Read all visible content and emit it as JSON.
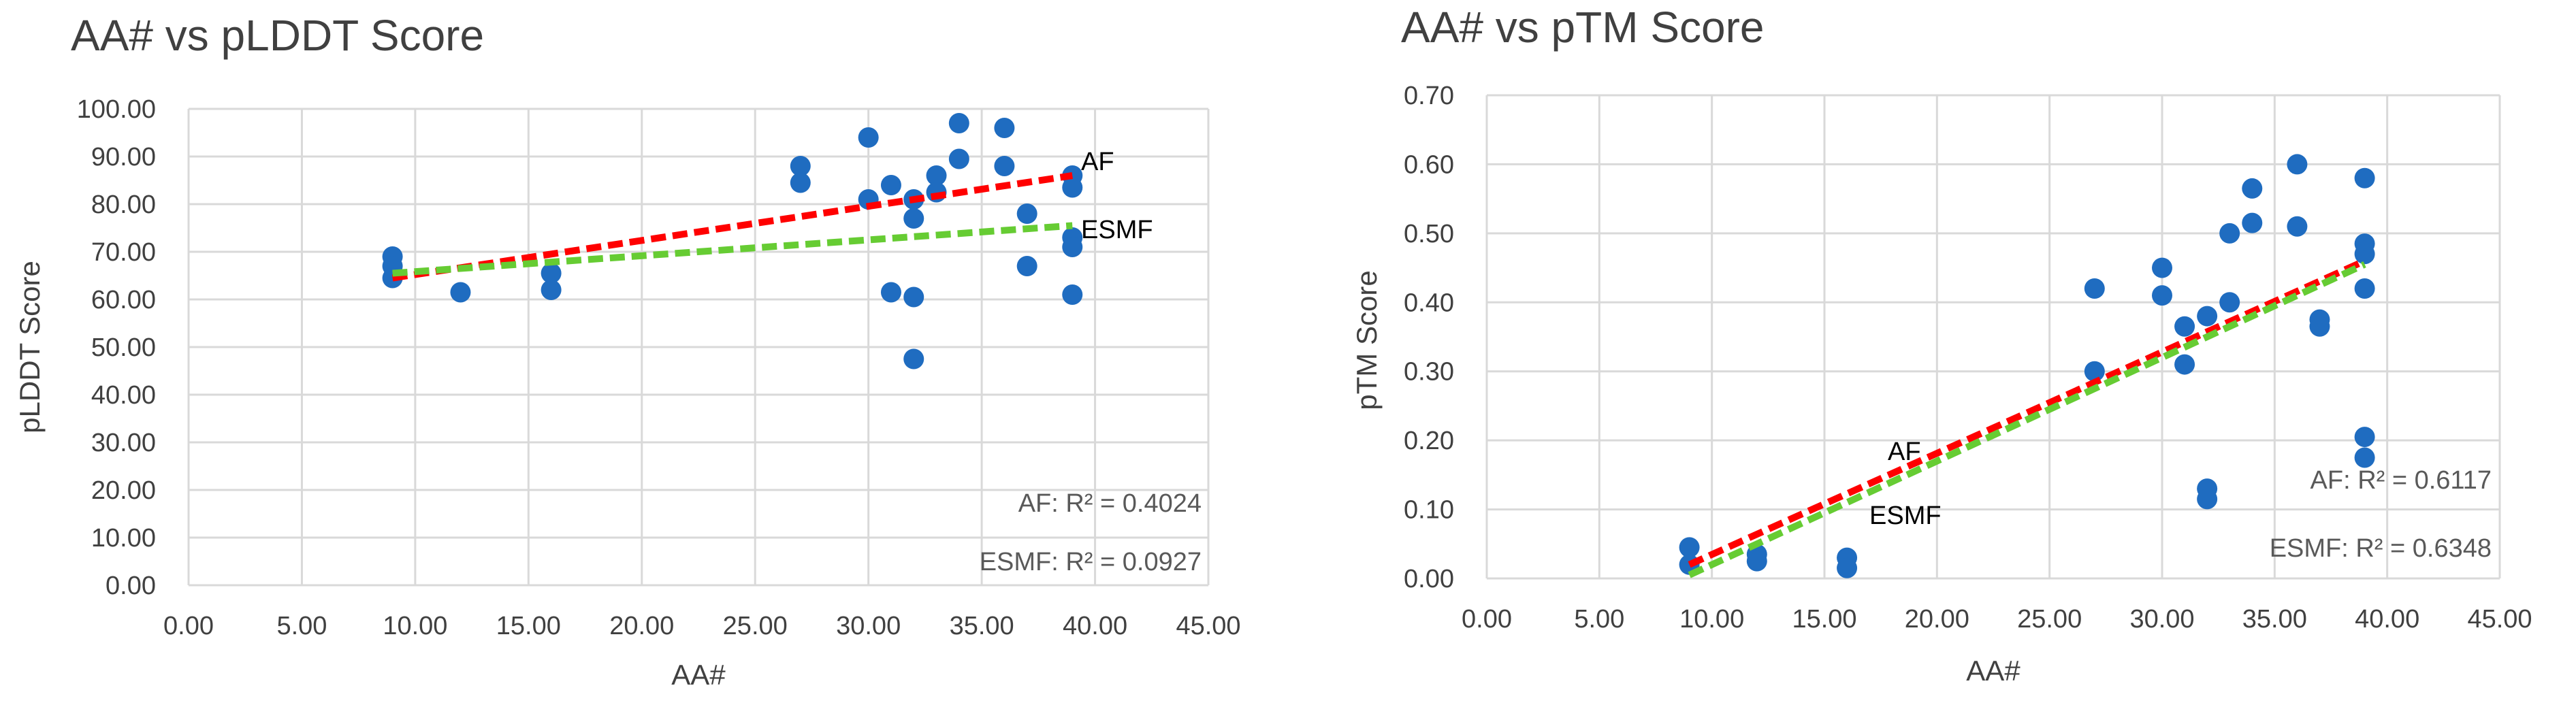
{
  "colors": {
    "points": "#1f6cc0",
    "af": "#ff0000",
    "esmf": "#66cc33",
    "grid": "#d9d9d9",
    "text": "#404040"
  },
  "chart_data": [
    {
      "type": "scatter",
      "title": "AA# vs pLDDT Score",
      "xlabel": "AA#",
      "ylabel": "pLDDT Score",
      "xlim": [
        0,
        45
      ],
      "ylim": [
        0,
        100
      ],
      "x_ticks": [
        "0.00",
        "5.00",
        "10.00",
        "15.00",
        "20.00",
        "25.00",
        "30.00",
        "35.00",
        "40.00",
        "45.00"
      ],
      "y_ticks": [
        "0.00",
        "10.00",
        "20.00",
        "30.00",
        "40.00",
        "50.00",
        "60.00",
        "70.00",
        "80.00",
        "90.00",
        "100.00"
      ],
      "grid": true,
      "points": [
        [
          9,
          69
        ],
        [
          9,
          67
        ],
        [
          9,
          64.5
        ],
        [
          12,
          61.5
        ],
        [
          16,
          65.5
        ],
        [
          16,
          62
        ],
        [
          27,
          88
        ],
        [
          27,
          84.5
        ],
        [
          30,
          94
        ],
        [
          30,
          81
        ],
        [
          31,
          84
        ],
        [
          31,
          61.5
        ],
        [
          32,
          81
        ],
        [
          32,
          77
        ],
        [
          32,
          60.5
        ],
        [
          32,
          47.5
        ],
        [
          33,
          86
        ],
        [
          33,
          82.5
        ],
        [
          34,
          97
        ],
        [
          34,
          89.5
        ],
        [
          36,
          96
        ],
        [
          36,
          88
        ],
        [
          37,
          78
        ],
        [
          37,
          67
        ],
        [
          39,
          86
        ],
        [
          39,
          83.5
        ],
        [
          39,
          73
        ],
        [
          39,
          71
        ],
        [
          39,
          61
        ]
      ],
      "trendlines": [
        {
          "name": "AF",
          "x": [
            9,
            39
          ],
          "y": [
            64.5,
            86
          ],
          "r2_label": "AF: R² = 0.4024"
        },
        {
          "name": "ESMF",
          "x": [
            9,
            39
          ],
          "y": [
            65.5,
            75.5
          ],
          "r2_label": "ESMF: R² = 0.0927"
        }
      ]
    },
    {
      "type": "scatter",
      "title": "AA# vs pTM Score",
      "xlabel": "AA#",
      "ylabel": "pTM Score",
      "xlim": [
        0,
        45
      ],
      "ylim": [
        0,
        0.7
      ],
      "x_ticks": [
        "0.00",
        "5.00",
        "10.00",
        "15.00",
        "20.00",
        "25.00",
        "30.00",
        "35.00",
        "40.00",
        "45.00"
      ],
      "y_ticks": [
        "0.00",
        "0.10",
        "0.20",
        "0.30",
        "0.40",
        "0.50",
        "0.60",
        "0.70"
      ],
      "grid": true,
      "points": [
        [
          9,
          0.045
        ],
        [
          9,
          0.02
        ],
        [
          12,
          0.035
        ],
        [
          12,
          0.025
        ],
        [
          16,
          0.03
        ],
        [
          16,
          0.015
        ],
        [
          27,
          0.42
        ],
        [
          27,
          0.3
        ],
        [
          30,
          0.45
        ],
        [
          30,
          0.41
        ],
        [
          31,
          0.365
        ],
        [
          31,
          0.31
        ],
        [
          32,
          0.38
        ],
        [
          32,
          0.13
        ],
        [
          32,
          0.115
        ],
        [
          33,
          0.5
        ],
        [
          33,
          0.4
        ],
        [
          34,
          0.565
        ],
        [
          34,
          0.515
        ],
        [
          36,
          0.6
        ],
        [
          36,
          0.51
        ],
        [
          37,
          0.375
        ],
        [
          37,
          0.365
        ],
        [
          39,
          0.58
        ],
        [
          39,
          0.485
        ],
        [
          39,
          0.47
        ],
        [
          39,
          0.42
        ],
        [
          39,
          0.205
        ],
        [
          39,
          0.175
        ]
      ],
      "trendlines": [
        {
          "name": "AF",
          "x": [
            9,
            39
          ],
          "y": [
            0.02,
            0.46
          ],
          "r2_label": "AF: R² = 0.6117"
        },
        {
          "name": "ESMF",
          "x": [
            9,
            39
          ],
          "y": [
            0.005,
            0.455
          ],
          "r2_label": "ESMF: R² = 0.6348"
        }
      ]
    }
  ]
}
